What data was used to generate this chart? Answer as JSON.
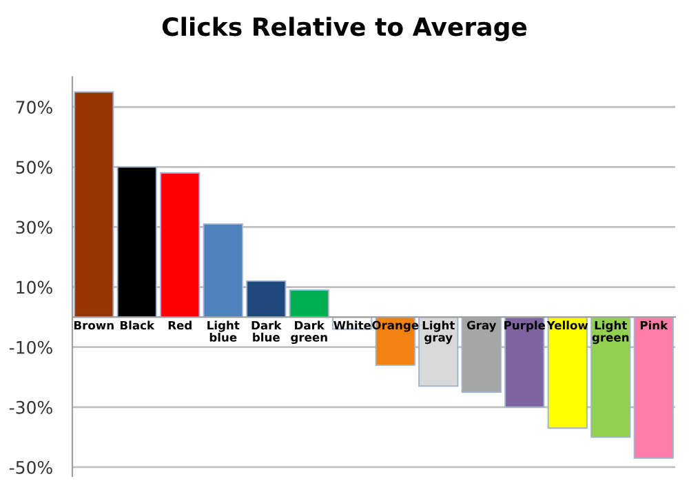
{
  "chart_data": {
    "type": "bar",
    "title": "Clicks Relative to Average",
    "categories": [
      "Brown",
      "Black",
      "Red",
      "Light blue",
      "Dark blue",
      "Dark green",
      "White",
      "Orange",
      "Light gray",
      "Gray",
      "Purple",
      "Yellow",
      "Light green",
      "Pink"
    ],
    "values": [
      75,
      50,
      48,
      31,
      12,
      9,
      -4,
      -16,
      -23,
      -25,
      -30,
      -37,
      -40,
      -47
    ],
    "colors": [
      "#993300",
      "#000000",
      "#ff0000",
      "#4f81bd",
      "#1f497d",
      "#00b050",
      "#ffffff",
      "#f0820f",
      "#d9d9d9",
      "#a6a6a6",
      "#8064a2",
      "#ffff00",
      "#92d050",
      "#ff7ca8"
    ],
    "ylim": [
      -53,
      80
    ],
    "yticks": [
      {
        "value": 70,
        "label": "70%"
      },
      {
        "value": 50,
        "label": "50%"
      },
      {
        "value": 30,
        "label": "30%"
      },
      {
        "value": 10,
        "label": "10%"
      },
      {
        "value": -10,
        "label": "-10%"
      },
      {
        "value": -30,
        "label": "-30%"
      },
      {
        "value": -50,
        "label": "-50%"
      }
    ],
    "grid": "y"
  }
}
